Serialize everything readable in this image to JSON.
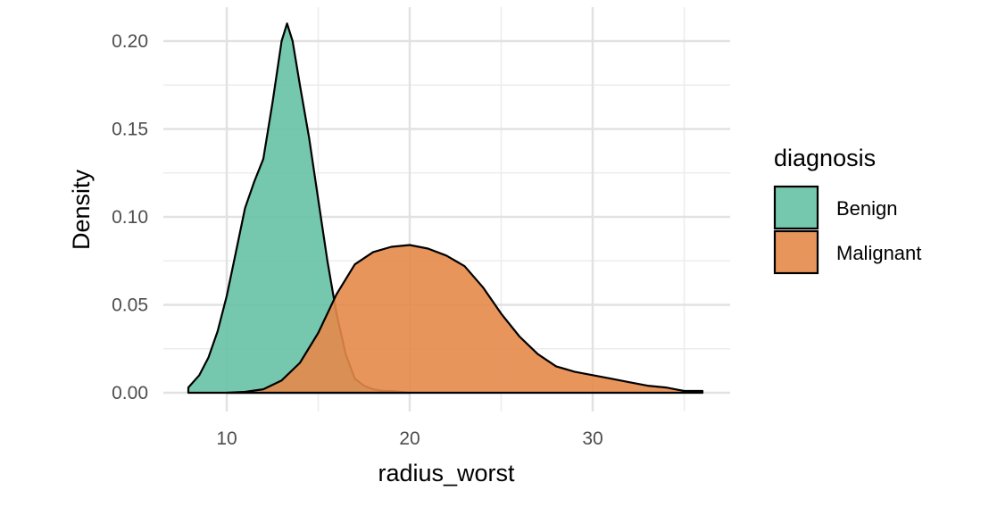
{
  "chart_data": {
    "type": "area",
    "xlabel": "radius_worst",
    "ylabel": "Density",
    "xlim": [
      7.9,
      36.1
    ],
    "ylim": [
      0,
      0.21
    ],
    "x_ticks": [
      10,
      20,
      30
    ],
    "x_tick_labels": [
      "10",
      "20",
      "30"
    ],
    "y_ticks": [
      0,
      0.05,
      0.1,
      0.15,
      0.2
    ],
    "y_tick_labels": [
      "0.00",
      "0.05",
      "0.10",
      "0.15",
      "0.20"
    ],
    "grid": true,
    "legend": {
      "title": "diagnosis",
      "placement": "right"
    },
    "series": [
      {
        "name": "Benign",
        "color": "#66c2a5",
        "x": [
          7.9,
          8.5,
          9.0,
          9.5,
          10.0,
          10.5,
          11.0,
          11.5,
          12.0,
          12.5,
          13.0,
          13.3,
          13.6,
          14.0,
          14.5,
          15.0,
          15.5,
          16.0,
          16.5,
          17.0,
          17.5,
          18.0,
          18.5,
          19.0,
          20.0
        ],
        "y": [
          0.003,
          0.01,
          0.02,
          0.035,
          0.055,
          0.08,
          0.105,
          0.12,
          0.133,
          0.165,
          0.2,
          0.21,
          0.2,
          0.175,
          0.145,
          0.11,
          0.075,
          0.045,
          0.022,
          0.008,
          0.004,
          0.002,
          0.001,
          0.001,
          0.0
        ]
      },
      {
        "name": "Malignant",
        "color": "#e5894a",
        "x": [
          10.0,
          11.0,
          12.0,
          13.0,
          14.0,
          15.0,
          16.0,
          17.0,
          18.0,
          19.0,
          20.0,
          21.0,
          22.0,
          23.0,
          24.0,
          25.0,
          26.0,
          27.0,
          28.0,
          29.0,
          30.0,
          31.0,
          32.0,
          33.0,
          34.0,
          35.0,
          36.0
        ],
        "y": [
          0.0,
          0.0005,
          0.002,
          0.007,
          0.017,
          0.034,
          0.056,
          0.073,
          0.08,
          0.083,
          0.084,
          0.082,
          0.078,
          0.072,
          0.06,
          0.045,
          0.032,
          0.022,
          0.015,
          0.012,
          0.01,
          0.008,
          0.006,
          0.004,
          0.003,
          0.001,
          0.001
        ]
      }
    ]
  }
}
